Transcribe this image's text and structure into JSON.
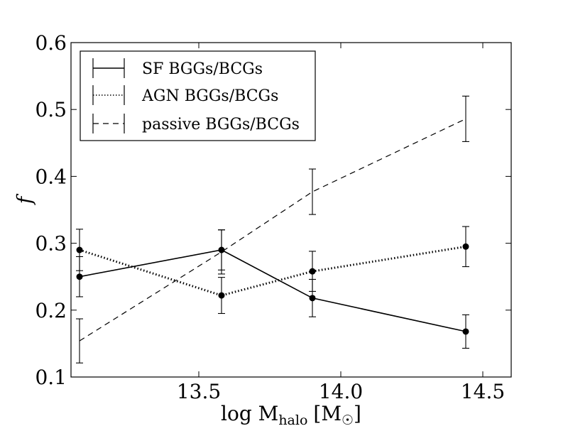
{
  "chart_data": {
    "type": "line",
    "title": "",
    "xlabel": "log M",
    "xlabel_sub": "halo",
    "xlabel_unit_open": "[M",
    "xlabel_unit_sub": "☉",
    "xlabel_unit_close": "]",
    "ylabel": "f",
    "xlim": [
      13.05,
      14.6
    ],
    "ylim": [
      0.1,
      0.6
    ],
    "xticks": [
      13.5,
      14.0,
      14.5
    ],
    "xtick_labels": [
      "13.5",
      "14.0",
      "14.5"
    ],
    "yticks": [
      0.1,
      0.2,
      0.3,
      0.4,
      0.5,
      0.6
    ],
    "ytick_labels": [
      "0.1",
      "0.2",
      "0.3",
      "0.4",
      "0.5",
      "0.6"
    ],
    "legend_position": "top-left",
    "series": [
      {
        "name": "SF BGGs/BCGs",
        "style": "solid",
        "markers": true,
        "x": [
          13.08,
          13.58,
          13.9,
          14.44
        ],
        "y": [
          0.25,
          0.29,
          0.218,
          0.168
        ],
        "err": [
          0.03,
          0.03,
          0.028,
          0.025
        ]
      },
      {
        "name": "AGN BGGs/BCGs",
        "style": "dotted",
        "markers": true,
        "x": [
          13.08,
          13.58,
          13.9,
          14.44
        ],
        "y": [
          0.29,
          0.222,
          0.258,
          0.295
        ],
        "err": [
          0.031,
          0.027,
          0.03,
          0.03
        ]
      },
      {
        "name": "passive BGGs/BCGs",
        "style": "dashed",
        "markers": false,
        "x": [
          13.08,
          13.58,
          13.9,
          14.44
        ],
        "y": [
          0.154,
          0.287,
          0.377,
          0.486
        ],
        "err": [
          0.033,
          0.033,
          0.034,
          0.034
        ]
      }
    ]
  }
}
